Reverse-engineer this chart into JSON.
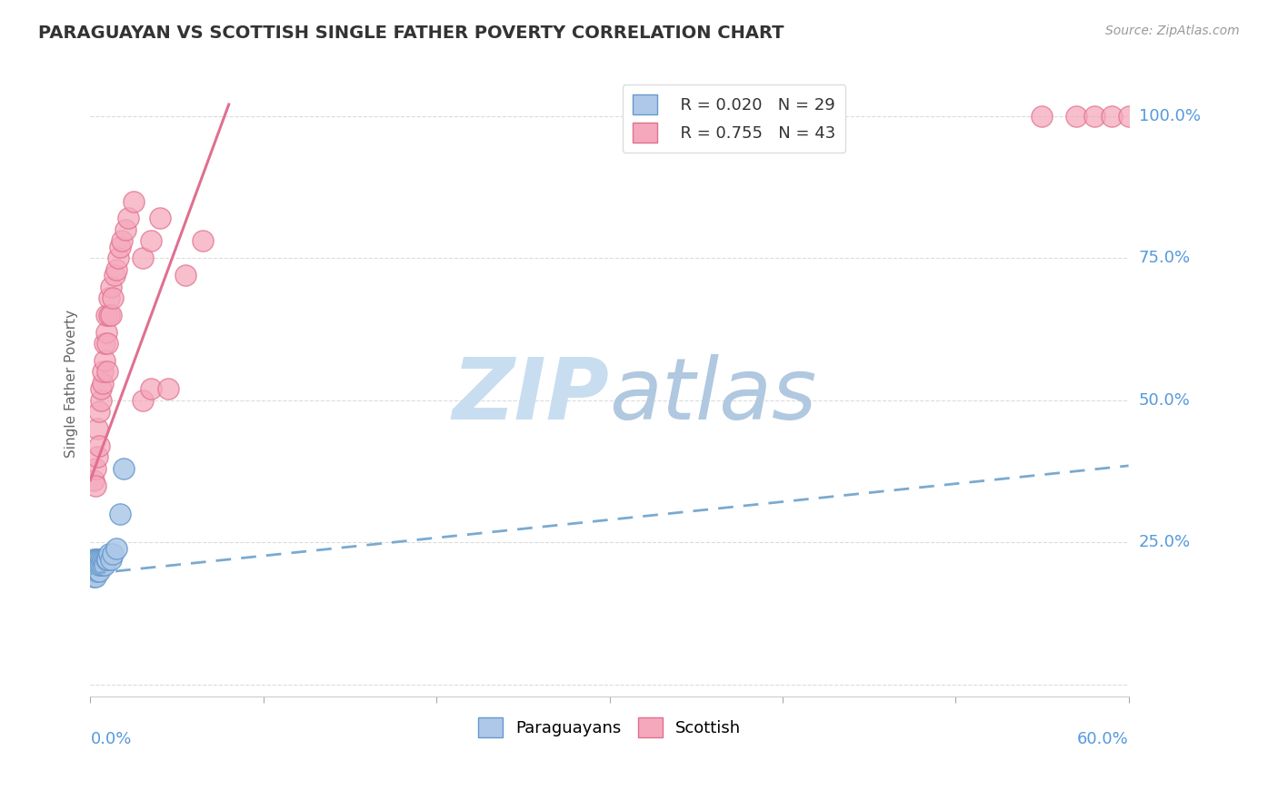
{
  "title": "PARAGUAYAN VS SCOTTISH SINGLE FATHER POVERTY CORRELATION CHART",
  "source": "Source: ZipAtlas.com",
  "ylabel": "Single Father Poverty",
  "yticks": [
    0.0,
    0.25,
    0.5,
    0.75,
    1.0
  ],
  "ytick_labels": [
    "",
    "25.0%",
    "50.0%",
    "75.0%",
    "100.0%"
  ],
  "xlim": [
    0.0,
    0.6
  ],
  "ylim": [
    -0.02,
    1.08
  ],
  "legend_r_blue": "R = 0.020",
  "legend_n_blue": "N = 29",
  "legend_r_pink": "R = 0.755",
  "legend_n_pink": "N = 43",
  "blue_color": "#adc8e8",
  "pink_color": "#f5a8bc",
  "blue_edge_color": "#6699cc",
  "pink_edge_color": "#e07090",
  "blue_line_color": "#7aaad0",
  "pink_line_color": "#e07090",
  "title_color": "#333333",
  "axis_label_color": "#5599dd",
  "watermark_text": "ZIPatlas",
  "watermark_color": "#ddeeff",
  "blue_scatter_x": [
    0.001,
    0.002,
    0.002,
    0.002,
    0.003,
    0.003,
    0.003,
    0.003,
    0.003,
    0.004,
    0.004,
    0.004,
    0.005,
    0.005,
    0.005,
    0.006,
    0.006,
    0.007,
    0.007,
    0.008,
    0.008,
    0.009,
    0.01,
    0.011,
    0.012,
    0.013,
    0.015,
    0.017,
    0.019
  ],
  "blue_scatter_y": [
    0.2,
    0.21,
    0.22,
    0.19,
    0.21,
    0.22,
    0.2,
    0.21,
    0.19,
    0.22,
    0.21,
    0.2,
    0.22,
    0.2,
    0.21,
    0.22,
    0.21,
    0.21,
    0.22,
    0.22,
    0.21,
    0.22,
    0.22,
    0.23,
    0.22,
    0.23,
    0.24,
    0.3,
    0.38
  ],
  "pink_scatter_x": [
    0.002,
    0.003,
    0.003,
    0.004,
    0.004,
    0.005,
    0.005,
    0.006,
    0.006,
    0.007,
    0.007,
    0.008,
    0.008,
    0.009,
    0.009,
    0.01,
    0.01,
    0.011,
    0.011,
    0.012,
    0.012,
    0.013,
    0.014,
    0.015,
    0.016,
    0.017,
    0.018,
    0.02,
    0.022,
    0.025,
    0.03,
    0.035,
    0.04,
    0.03,
    0.035,
    0.045,
    0.055,
    0.065,
    0.55,
    0.57,
    0.58,
    0.59,
    0.6
  ],
  "pink_scatter_y": [
    0.36,
    0.38,
    0.35,
    0.4,
    0.45,
    0.42,
    0.48,
    0.5,
    0.52,
    0.53,
    0.55,
    0.57,
    0.6,
    0.62,
    0.65,
    0.6,
    0.55,
    0.65,
    0.68,
    0.7,
    0.65,
    0.68,
    0.72,
    0.73,
    0.75,
    0.77,
    0.78,
    0.8,
    0.82,
    0.85,
    0.75,
    0.78,
    0.82,
    0.5,
    0.52,
    0.52,
    0.72,
    0.78,
    1.0,
    1.0,
    1.0,
    1.0,
    1.0
  ],
  "blue_trend_x0": 0.0,
  "blue_trend_y0": 0.195,
  "blue_trend_x1": 0.6,
  "blue_trend_y1": 0.385,
  "pink_trend_x0": 0.0,
  "pink_trend_y0": 0.36,
  "pink_trend_x1": 0.08,
  "pink_trend_y1": 1.02
}
